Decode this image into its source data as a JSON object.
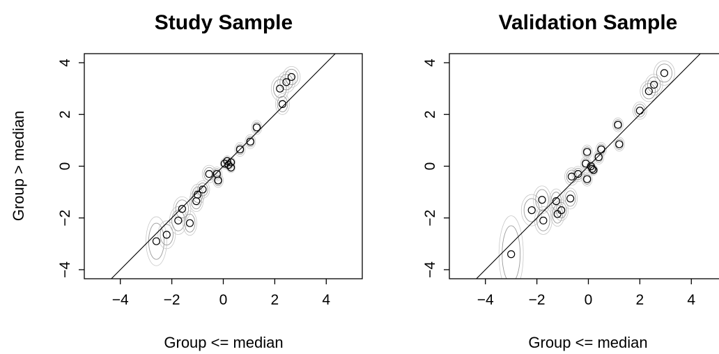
{
  "chart_data": [
    {
      "type": "scatter",
      "title": "Study Sample",
      "xlabel": "Group <= median",
      "ylabel": "Group > median",
      "xlim": [
        -5.4,
        5.4
      ],
      "ylim": [
        -4.35,
        4.35
      ],
      "xticks": [
        -4,
        -2,
        0,
        2,
        4
      ],
      "yticks": [
        -4,
        -2,
        0,
        2,
        4
      ],
      "xtick_labels": [
        "−4",
        "−2",
        "0",
        "2",
        "4"
      ],
      "ytick_labels": [
        "−4",
        "−2",
        "0",
        "2",
        "4"
      ],
      "reference_line": {
        "slope": 1.0,
        "intercept": 0
      },
      "grid": false,
      "points": [
        {
          "x": -2.6,
          "y": -2.9,
          "sx": 0.3,
          "sy": 0.7
        },
        {
          "x": -2.2,
          "y": -2.65,
          "sx": 0.25,
          "sy": 0.4
        },
        {
          "x": -1.75,
          "y": -2.1,
          "sx": 0.25,
          "sy": 0.4
        },
        {
          "x": -1.6,
          "y": -1.65,
          "sx": 0.25,
          "sy": 0.35
        },
        {
          "x": -1.3,
          "y": -2.2,
          "sx": 0.2,
          "sy": 0.35
        },
        {
          "x": -1.05,
          "y": -1.35,
          "sx": 0.2,
          "sy": 0.3
        },
        {
          "x": -1.0,
          "y": -1.1,
          "sx": 0.2,
          "sy": 0.3
        },
        {
          "x": -0.8,
          "y": -0.9,
          "sx": 0.2,
          "sy": 0.25
        },
        {
          "x": -0.55,
          "y": -0.3,
          "sx": 0.2,
          "sy": 0.25
        },
        {
          "x": -0.25,
          "y": -0.3,
          "sx": 0.15,
          "sy": 0.2
        },
        {
          "x": -0.2,
          "y": -0.55,
          "sx": 0.15,
          "sy": 0.2
        },
        {
          "x": 0.05,
          "y": 0.1,
          "sx": 0.12,
          "sy": 0.15
        },
        {
          "x": 0.15,
          "y": 0.2,
          "sx": 0.12,
          "sy": 0.15
        },
        {
          "x": 0.2,
          "y": 0.05,
          "sx": 0.12,
          "sy": 0.15
        },
        {
          "x": 0.3,
          "y": 0.15,
          "sx": 0.12,
          "sy": 0.15
        },
        {
          "x": 0.3,
          "y": -0.05,
          "sx": 0.12,
          "sy": 0.15
        },
        {
          "x": 0.65,
          "y": 0.65,
          "sx": 0.15,
          "sy": 0.2
        },
        {
          "x": 1.05,
          "y": 0.95,
          "sx": 0.15,
          "sy": 0.2
        },
        {
          "x": 1.3,
          "y": 1.5,
          "sx": 0.15,
          "sy": 0.2
        },
        {
          "x": 2.2,
          "y": 3.0,
          "sx": 0.25,
          "sy": 0.35
        },
        {
          "x": 2.3,
          "y": 2.4,
          "sx": 0.2,
          "sy": 0.3
        },
        {
          "x": 2.45,
          "y": 3.25,
          "sx": 0.25,
          "sy": 0.3
        },
        {
          "x": 2.65,
          "y": 3.45,
          "sx": 0.25,
          "sy": 0.3
        }
      ]
    },
    {
      "type": "scatter",
      "title": "Validation Sample",
      "xlabel": "Group <= median",
      "ylabel": "",
      "xlim": [
        -5.4,
        5.4
      ],
      "ylim": [
        -4.35,
        4.35
      ],
      "xticks": [
        -4,
        -2,
        0,
        2,
        4
      ],
      "yticks": [
        -4,
        -2,
        0,
        2,
        4
      ],
      "xtick_labels": [
        "−4",
        "−2",
        "0",
        "2",
        "4"
      ],
      "ytick_labels": [
        "−4",
        "−2",
        "0",
        "2",
        "4"
      ],
      "reference_line": {
        "slope": 1.0,
        "intercept": 0
      },
      "grid": false,
      "points": [
        {
          "x": -3.0,
          "y": -3.4,
          "sx": 0.35,
          "sy": 1.1
        },
        {
          "x": -2.2,
          "y": -1.7,
          "sx": 0.3,
          "sy": 0.45
        },
        {
          "x": -1.8,
          "y": -1.3,
          "sx": 0.25,
          "sy": 0.4
        },
        {
          "x": -1.75,
          "y": -2.1,
          "sx": 0.25,
          "sy": 0.4
        },
        {
          "x": -1.25,
          "y": -1.35,
          "sx": 0.2,
          "sy": 0.35
        },
        {
          "x": -1.2,
          "y": -1.85,
          "sx": 0.2,
          "sy": 0.35
        },
        {
          "x": -1.05,
          "y": -1.7,
          "sx": 0.2,
          "sy": 0.3
        },
        {
          "x": -0.7,
          "y": -1.25,
          "sx": 0.2,
          "sy": 0.3
        },
        {
          "x": -0.65,
          "y": -0.4,
          "sx": 0.2,
          "sy": 0.25
        },
        {
          "x": -0.4,
          "y": -0.3,
          "sx": 0.18,
          "sy": 0.22
        },
        {
          "x": -0.1,
          "y": 0.1,
          "sx": 0.15,
          "sy": 0.2
        },
        {
          "x": -0.05,
          "y": 0.55,
          "sx": 0.15,
          "sy": 0.2
        },
        {
          "x": -0.05,
          "y": -0.5,
          "sx": 0.15,
          "sy": 0.2
        },
        {
          "x": 0.1,
          "y": 0.0,
          "sx": 0.12,
          "sy": 0.15
        },
        {
          "x": 0.15,
          "y": -0.1,
          "sx": 0.12,
          "sy": 0.15
        },
        {
          "x": 0.2,
          "y": -0.15,
          "sx": 0.12,
          "sy": 0.15
        },
        {
          "x": 0.4,
          "y": 0.35,
          "sx": 0.15,
          "sy": 0.2
        },
        {
          "x": 0.5,
          "y": 0.65,
          "sx": 0.15,
          "sy": 0.2
        },
        {
          "x": 1.15,
          "y": 1.6,
          "sx": 0.15,
          "sy": 0.2
        },
        {
          "x": 1.2,
          "y": 0.85,
          "sx": 0.15,
          "sy": 0.2
        },
        {
          "x": 2.0,
          "y": 2.15,
          "sx": 0.2,
          "sy": 0.25
        },
        {
          "x": 2.35,
          "y": 2.9,
          "sx": 0.25,
          "sy": 0.3
        },
        {
          "x": 2.55,
          "y": 3.15,
          "sx": 0.25,
          "sy": 0.3
        },
        {
          "x": 2.95,
          "y": 3.6,
          "sx": 0.3,
          "sy": 0.35
        }
      ]
    }
  ]
}
